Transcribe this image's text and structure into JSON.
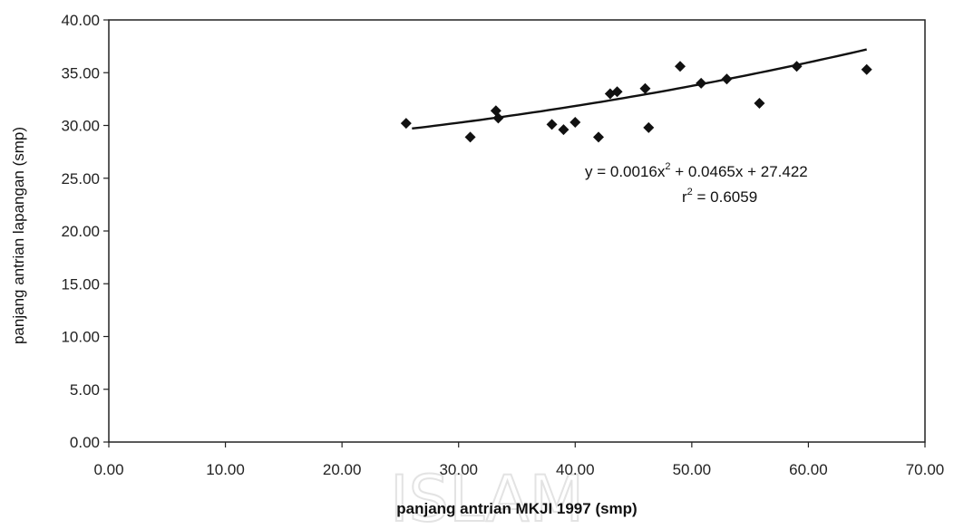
{
  "chart_data": {
    "type": "scatter",
    "title": "",
    "xlabel": "panjang antrian MKJI 1997 (smp)",
    "ylabel": "panjang antrian lapangan (smp)",
    "xlim": [
      0,
      70
    ],
    "ylim": [
      0,
      40
    ],
    "x_ticks": [
      "0.00",
      "10.00",
      "20.00",
      "30.00",
      "40.00",
      "50.00",
      "60.00",
      "70.00"
    ],
    "y_ticks": [
      "0.00",
      "5.00",
      "10.00",
      "15.00",
      "20.00",
      "25.00",
      "30.00",
      "35.00",
      "40.00"
    ],
    "grid": false,
    "legend": "none",
    "points": [
      {
        "x": 25.5,
        "y": 30.2
      },
      {
        "x": 31.0,
        "y": 28.9
      },
      {
        "x": 33.2,
        "y": 31.4
      },
      {
        "x": 33.4,
        "y": 30.7
      },
      {
        "x": 38.0,
        "y": 30.1
      },
      {
        "x": 39.0,
        "y": 29.6
      },
      {
        "x": 40.0,
        "y": 30.3
      },
      {
        "x": 42.0,
        "y": 28.9
      },
      {
        "x": 43.0,
        "y": 33.0
      },
      {
        "x": 43.6,
        "y": 33.2
      },
      {
        "x": 46.0,
        "y": 33.5
      },
      {
        "x": 46.3,
        "y": 29.8
      },
      {
        "x": 49.0,
        "y": 35.6
      },
      {
        "x": 50.8,
        "y": 34.0
      },
      {
        "x": 53.0,
        "y": 34.4
      },
      {
        "x": 55.8,
        "y": 32.1
      },
      {
        "x": 59.0,
        "y": 35.6
      },
      {
        "x": 65.0,
        "y": 35.3
      }
    ],
    "trendline": {
      "type": "polynomial",
      "coefficients": {
        "a": 0.0016,
        "b": 0.0465,
        "c": 27.422
      },
      "x_range": [
        26,
        65
      ],
      "equation_text": "y = 0.0016x",
      "equation_sup": "2",
      "equation_rest": " + 0.0465x  + 27.422",
      "r2_prefix": "r",
      "r2_sup": "2",
      "r2_rest": " = 0.6059"
    },
    "marker_color": "#111111",
    "line_color": "#111111"
  },
  "watermark": "ISLAM"
}
